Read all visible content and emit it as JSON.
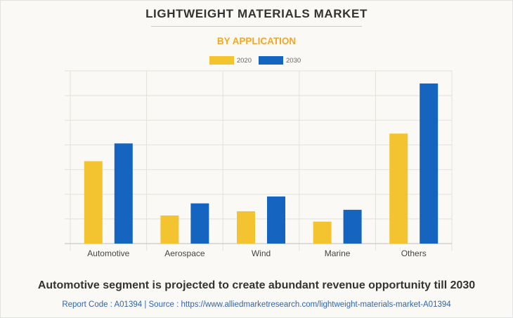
{
  "header": {
    "title": "LIGHTWEIGHT MATERIALS MARKET",
    "subtitle": "BY APPLICATION"
  },
  "footer": {
    "headline": "Automotive segment is projected to create abundant revenue opportunity till 2030",
    "source": "Report Code : A01394  |  Source : https://www.alliedmarketresearch.com/lightweight-materials-market-A01394"
  },
  "chart_data": {
    "type": "bar",
    "title": "LIGHTWEIGHT MATERIALS MARKET",
    "subtitle": "BY APPLICATION",
    "xlabel": "",
    "ylabel": "",
    "categories": [
      "Automotive",
      "Aerospace",
      "Wind",
      "Marine",
      "Others"
    ],
    "series": [
      {
        "name": "2020",
        "color": "#f4c430",
        "values": [
          3.34,
          1.14,
          1.31,
          0.89,
          4.46
        ]
      },
      {
        "name": "2030",
        "color": "#1565c0",
        "values": [
          4.06,
          1.63,
          1.91,
          1.37,
          6.49
        ]
      }
    ],
    "ylim": [
      0,
      7
    ],
    "y_gridlines": 7,
    "y_tick_labels_shown": false,
    "grid": true,
    "legend": "top-center"
  }
}
